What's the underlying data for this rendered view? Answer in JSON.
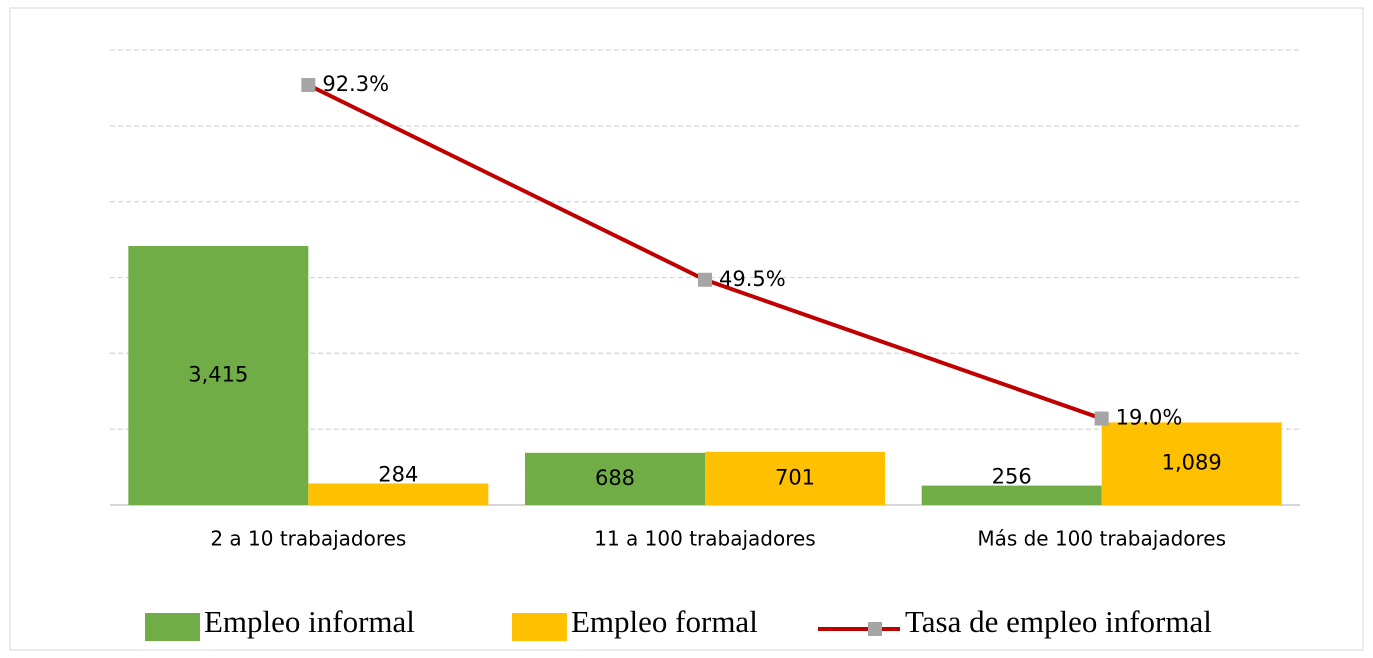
{
  "chart_data": {
    "type": "bar_line",
    "categories": [
      "2 a 10 trabajadores",
      "11 a 100 trabajadores",
      "Más de 100 trabajadores"
    ],
    "series": [
      {
        "name": "Empleo informal",
        "color": "#70ad47",
        "values": [
          3415,
          688,
          256
        ],
        "value_labels": [
          "3,415",
          "688",
          "256"
        ]
      },
      {
        "name": "Empleo formal",
        "color": "#ffc000",
        "values": [
          284,
          701,
          1089
        ],
        "value_labels": [
          "284",
          "701",
          "1,089"
        ]
      },
      {
        "name": "Tasa de empleo informal",
        "color": "#c00000",
        "marker_color": "#a5a5a5",
        "axis": "y2",
        "values": [
          92.3,
          49.5,
          19.0
        ],
        "value_labels": [
          "92.3%",
          "49.5%",
          "19.0%"
        ]
      }
    ],
    "ylim": [
      0,
      6000
    ],
    "yticks": [
      0,
      1000,
      2000,
      3000,
      4000,
      5000,
      6000
    ],
    "y2lim": [
      0,
      100
    ],
    "grid": true,
    "legend": "bottom"
  }
}
